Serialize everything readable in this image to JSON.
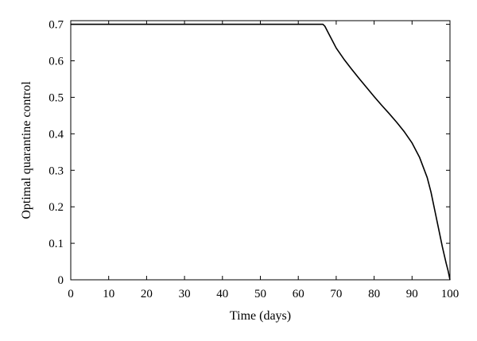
{
  "chart_data": {
    "type": "line",
    "title": "",
    "xlabel": "Time (days)",
    "ylabel": "Optimal quarantine control",
    "xlim": [
      0,
      100
    ],
    "ylim": [
      0,
      0.71
    ],
    "xticks": [
      0,
      10,
      20,
      30,
      40,
      50,
      60,
      70,
      80,
      90,
      100
    ],
    "yticks": [
      0,
      0.1,
      0.2,
      0.3,
      0.4,
      0.5,
      0.6,
      0.7
    ],
    "xtick_labels": [
      "0",
      "10",
      "20",
      "30",
      "40",
      "50",
      "60",
      "70",
      "80",
      "90",
      "100"
    ],
    "ytick_labels": [
      "0",
      "0.1",
      "0.2",
      "0.3",
      "0.4",
      "0.5",
      "0.6",
      "0.7"
    ],
    "grid": false,
    "series": [
      {
        "color": "#000000",
        "x": [
          0,
          10,
          20,
          30,
          40,
          50,
          60,
          66.5,
          67,
          68,
          69,
          70,
          72,
          74,
          76,
          78,
          80,
          82,
          84,
          86,
          88,
          90,
          92,
          94,
          95,
          96,
          97,
          98,
          99,
          99.5,
          100
        ],
        "y": [
          0.7,
          0.7,
          0.7,
          0.7,
          0.7,
          0.7,
          0.7,
          0.7,
          0.695,
          0.675,
          0.655,
          0.635,
          0.605,
          0.578,
          0.552,
          0.527,
          0.502,
          0.478,
          0.455,
          0.431,
          0.405,
          0.375,
          0.335,
          0.28,
          0.24,
          0.19,
          0.14,
          0.09,
          0.045,
          0.025,
          0.0
        ]
      }
    ]
  }
}
